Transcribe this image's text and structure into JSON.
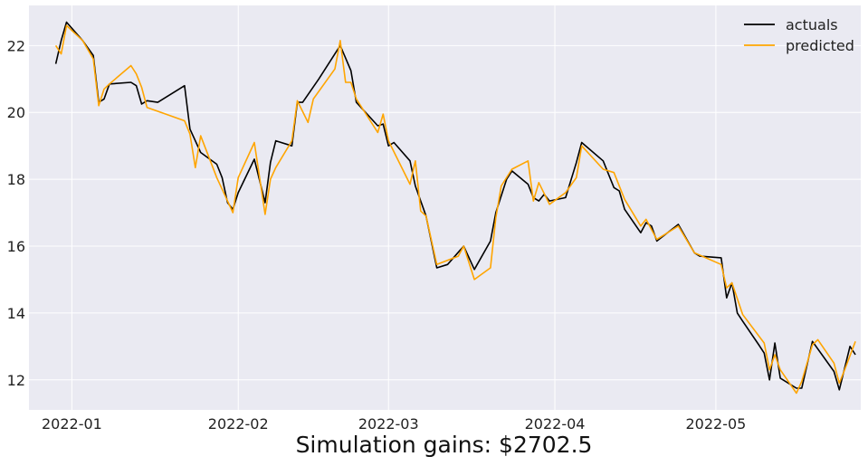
{
  "chart_data": {
    "type": "line",
    "title": "",
    "xlabel": "Simulation gains: $2702.5",
    "ylabel": "",
    "xlim": [
      "2021-12-24",
      "2022-05-28"
    ],
    "ylim": [
      11.1,
      23.2
    ],
    "grid": true,
    "legend": "top-right",
    "x_ticks": [
      {
        "date": "2022-01-01",
        "label": "2022-01"
      },
      {
        "date": "2022-02-01",
        "label": "2022-02"
      },
      {
        "date": "2022-03-01",
        "label": "2022-03"
      },
      {
        "date": "2022-04-01",
        "label": "2022-04"
      },
      {
        "date": "2022-05-01",
        "label": "2022-05"
      }
    ],
    "y_ticks": [
      12,
      14,
      16,
      18,
      20,
      22
    ],
    "series": [
      {
        "name": "actuals",
        "color": "#000000",
        "points": [
          [
            "2021-12-29",
            21.45
          ],
          [
            "2021-12-30",
            22.15
          ],
          [
            "2021-12-31",
            22.7
          ],
          [
            "2022-01-03",
            22.15
          ],
          [
            "2022-01-05",
            21.7
          ],
          [
            "2022-01-06",
            20.3
          ],
          [
            "2022-01-07",
            20.4
          ],
          [
            "2022-01-08",
            20.85
          ],
          [
            "2022-01-12",
            20.9
          ],
          [
            "2022-01-13",
            20.8
          ],
          [
            "2022-01-14",
            20.25
          ],
          [
            "2022-01-15",
            20.35
          ],
          [
            "2022-01-17",
            20.3
          ],
          [
            "2022-01-22",
            20.8
          ],
          [
            "2022-01-23",
            19.5
          ],
          [
            "2022-01-25",
            18.8
          ],
          [
            "2022-01-28",
            18.45
          ],
          [
            "2022-01-29",
            18.05
          ],
          [
            "2022-01-30",
            17.3
          ],
          [
            "2022-01-31",
            17.1
          ],
          [
            "2022-02-01",
            17.6
          ],
          [
            "2022-02-04",
            18.6
          ],
          [
            "2022-02-06",
            17.3
          ],
          [
            "2022-02-07",
            18.5
          ],
          [
            "2022-02-08",
            19.15
          ],
          [
            "2022-02-11",
            19.0
          ],
          [
            "2022-02-12",
            20.3
          ],
          [
            "2022-02-13",
            20.3
          ],
          [
            "2022-02-16",
            21.0
          ],
          [
            "2022-02-20",
            22.0
          ],
          [
            "2022-02-22",
            21.25
          ],
          [
            "2022-02-23",
            20.3
          ],
          [
            "2022-02-27",
            19.6
          ],
          [
            "2022-02-28",
            19.65
          ],
          [
            "2022-03-01",
            19.0
          ],
          [
            "2022-03-02",
            19.1
          ],
          [
            "2022-03-05",
            18.55
          ],
          [
            "2022-03-06",
            17.8
          ],
          [
            "2022-03-08",
            16.9
          ],
          [
            "2022-03-10",
            15.35
          ],
          [
            "2022-03-12",
            15.45
          ],
          [
            "2022-03-15",
            16.0
          ],
          [
            "2022-03-17",
            15.3
          ],
          [
            "2022-03-20",
            16.15
          ],
          [
            "2022-03-21",
            17.0
          ],
          [
            "2022-03-23",
            18.0
          ],
          [
            "2022-03-24",
            18.25
          ],
          [
            "2022-03-27",
            17.85
          ],
          [
            "2022-03-28",
            17.45
          ],
          [
            "2022-03-29",
            17.35
          ],
          [
            "2022-03-30",
            17.55
          ],
          [
            "2022-03-31",
            17.35
          ],
          [
            "2022-04-03",
            17.45
          ],
          [
            "2022-04-05",
            18.5
          ],
          [
            "2022-04-06",
            19.1
          ],
          [
            "2022-04-10",
            18.55
          ],
          [
            "2022-04-12",
            17.75
          ],
          [
            "2022-04-13",
            17.65
          ],
          [
            "2022-04-14",
            17.1
          ],
          [
            "2022-04-17",
            16.4
          ],
          [
            "2022-04-18",
            16.7
          ],
          [
            "2022-04-19",
            16.6
          ],
          [
            "2022-04-20",
            16.15
          ],
          [
            "2022-04-24",
            16.65
          ],
          [
            "2022-04-27",
            15.8
          ],
          [
            "2022-04-28",
            15.7
          ],
          [
            "2022-05-02",
            15.65
          ],
          [
            "2022-05-03",
            14.45
          ],
          [
            "2022-05-04",
            14.9
          ],
          [
            "2022-05-05",
            14.0
          ],
          [
            "2022-05-06",
            13.75
          ],
          [
            "2022-05-09",
            13.05
          ],
          [
            "2022-05-10",
            12.8
          ],
          [
            "2022-05-11",
            12.0
          ],
          [
            "2022-05-12",
            13.1
          ],
          [
            "2022-05-13",
            12.05
          ],
          [
            "2022-05-16",
            11.75
          ],
          [
            "2022-05-17",
            11.75
          ],
          [
            "2022-05-19",
            13.15
          ],
          [
            "2022-05-23",
            12.25
          ],
          [
            "2022-05-24",
            11.7
          ],
          [
            "2022-05-26",
            13.0
          ],
          [
            "2022-05-27",
            12.75
          ]
        ]
      },
      {
        "name": "predicted",
        "color": "#ffa500",
        "points": [
          [
            "2021-12-29",
            22.0
          ],
          [
            "2021-12-30",
            21.75
          ],
          [
            "2021-12-31",
            22.6
          ],
          [
            "2022-01-03",
            22.15
          ],
          [
            "2022-01-05",
            21.6
          ],
          [
            "2022-01-06",
            20.2
          ],
          [
            "2022-01-07",
            20.7
          ],
          [
            "2022-01-08",
            20.85
          ],
          [
            "2022-01-12",
            21.4
          ],
          [
            "2022-01-13",
            21.15
          ],
          [
            "2022-01-14",
            20.75
          ],
          [
            "2022-01-15",
            20.15
          ],
          [
            "2022-01-22",
            19.75
          ],
          [
            "2022-01-23",
            19.35
          ],
          [
            "2022-01-24",
            18.35
          ],
          [
            "2022-01-25",
            19.3
          ],
          [
            "2022-01-28",
            18.05
          ],
          [
            "2022-01-30",
            17.35
          ],
          [
            "2022-01-31",
            17.0
          ],
          [
            "2022-02-01",
            18.05
          ],
          [
            "2022-02-04",
            19.1
          ],
          [
            "2022-02-06",
            16.95
          ],
          [
            "2022-02-07",
            18.0
          ],
          [
            "2022-02-08",
            18.35
          ],
          [
            "2022-02-11",
            19.15
          ],
          [
            "2022-02-12",
            20.35
          ],
          [
            "2022-02-14",
            19.7
          ],
          [
            "2022-02-15",
            20.4
          ],
          [
            "2022-02-19",
            21.3
          ],
          [
            "2022-02-20",
            22.15
          ],
          [
            "2022-02-21",
            20.9
          ],
          [
            "2022-02-22",
            20.9
          ],
          [
            "2022-02-23",
            20.4
          ],
          [
            "2022-02-27",
            19.4
          ],
          [
            "2022-02-28",
            19.95
          ],
          [
            "2022-03-01",
            19.15
          ],
          [
            "2022-03-05",
            17.85
          ],
          [
            "2022-03-06",
            18.55
          ],
          [
            "2022-03-07",
            17.05
          ],
          [
            "2022-03-08",
            16.9
          ],
          [
            "2022-03-10",
            15.45
          ],
          [
            "2022-03-14",
            15.7
          ],
          [
            "2022-03-15",
            16.0
          ],
          [
            "2022-03-17",
            15.0
          ],
          [
            "2022-03-20",
            15.35
          ],
          [
            "2022-03-21",
            16.85
          ],
          [
            "2022-03-22",
            17.8
          ],
          [
            "2022-03-24",
            18.3
          ],
          [
            "2022-03-27",
            18.55
          ],
          [
            "2022-03-28",
            17.35
          ],
          [
            "2022-03-29",
            17.9
          ],
          [
            "2022-03-31",
            17.25
          ],
          [
            "2022-04-03",
            17.6
          ],
          [
            "2022-04-05",
            18.05
          ],
          [
            "2022-04-06",
            19.0
          ],
          [
            "2022-04-10",
            18.3
          ],
          [
            "2022-04-12",
            18.2
          ],
          [
            "2022-04-14",
            17.4
          ],
          [
            "2022-04-17",
            16.6
          ],
          [
            "2022-04-18",
            16.8
          ],
          [
            "2022-04-20",
            16.2
          ],
          [
            "2022-04-24",
            16.6
          ],
          [
            "2022-04-27",
            15.8
          ],
          [
            "2022-05-02",
            15.45
          ],
          [
            "2022-05-03",
            14.75
          ],
          [
            "2022-05-04",
            14.9
          ],
          [
            "2022-05-06",
            13.95
          ],
          [
            "2022-05-10",
            13.1
          ],
          [
            "2022-05-11",
            12.3
          ],
          [
            "2022-05-12",
            12.75
          ],
          [
            "2022-05-13",
            12.3
          ],
          [
            "2022-05-16",
            11.6
          ],
          [
            "2022-05-17",
            11.95
          ],
          [
            "2022-05-19",
            13.05
          ],
          [
            "2022-05-20",
            13.2
          ],
          [
            "2022-05-23",
            12.5
          ],
          [
            "2022-05-24",
            11.9
          ],
          [
            "2022-05-25",
            12.3
          ],
          [
            "2022-05-27",
            13.15
          ]
        ]
      }
    ],
    "colors": {
      "plot_background": "#eaeaf2",
      "grid": "#ffffff"
    }
  }
}
